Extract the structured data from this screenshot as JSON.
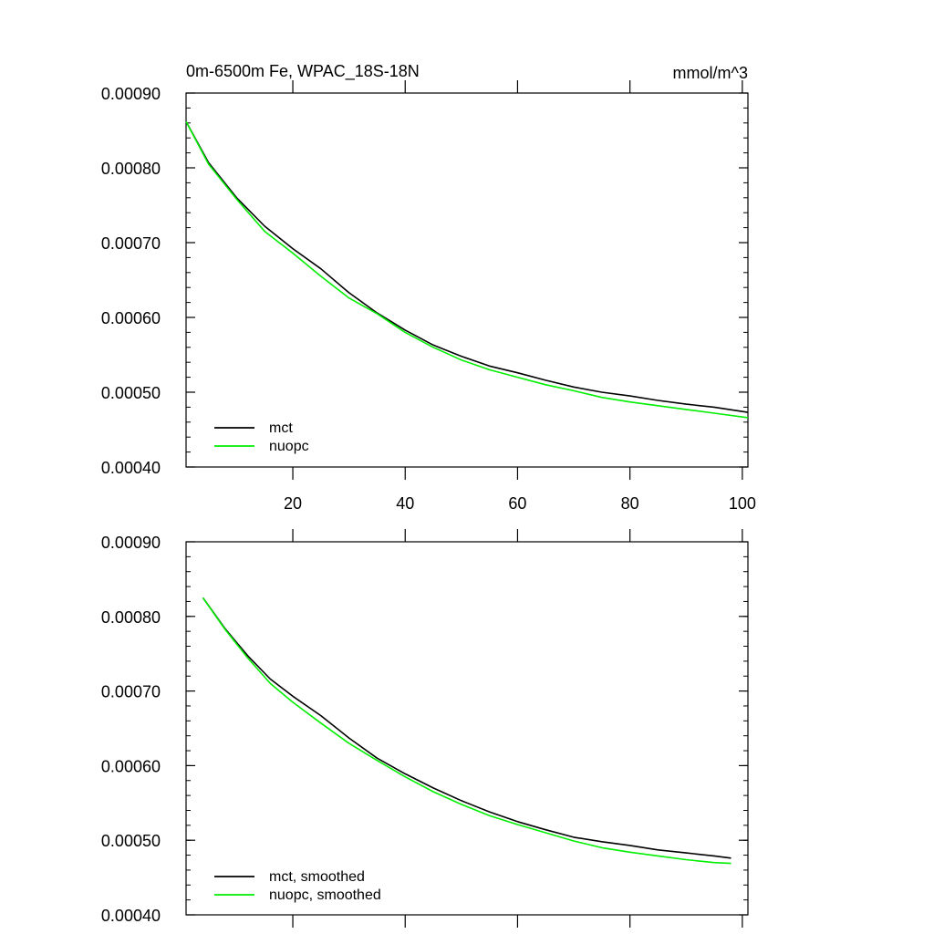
{
  "chart_data": [
    {
      "type": "line",
      "title_left": "0m-6500m Fe, WPAC_18S-18N",
      "title_right": "mmol/m^3",
      "xlim": [
        1,
        101
      ],
      "ylim": [
        0.0004,
        0.0009
      ],
      "yticks": [
        0.0004,
        0.0005,
        0.0006,
        0.0007,
        0.0008,
        0.0009
      ],
      "ytick_labels": [
        "0.00040",
        "0.00050",
        "0.00060",
        "0.00070",
        "0.00080",
        "0.00090"
      ],
      "xticks": [
        20,
        40,
        60,
        80,
        100
      ],
      "xtick_labels": [
        "20",
        "40",
        "60",
        "80",
        "100"
      ],
      "legend_position": "bottom-left",
      "series": [
        {
          "name": "mct",
          "color": "#000000",
          "x": [
            1,
            5,
            10,
            15,
            20,
            25,
            30,
            35,
            40,
            45,
            50,
            55,
            60,
            65,
            70,
            75,
            80,
            85,
            90,
            95,
            101
          ],
          "y": [
            0.000862,
            0.000807,
            0.00076,
            0.000722,
            0.000692,
            0.000665,
            0.000633,
            0.000606,
            0.000583,
            0.000563,
            0.000548,
            0.000535,
            0.000526,
            0.000516,
            0.000507,
            0.0005,
            0.000495,
            0.000489,
            0.000484,
            0.00048,
            0.000473
          ]
        },
        {
          "name": "nuopc",
          "color": "#00ee00",
          "x": [
            1,
            5,
            10,
            15,
            20,
            25,
            30,
            35,
            40,
            45,
            50,
            55,
            60,
            65,
            70,
            75,
            80,
            85,
            90,
            95,
            101
          ],
          "y": [
            0.000862,
            0.000805,
            0.000758,
            0.000715,
            0.000686,
            0.000655,
            0.000626,
            0.000605,
            0.00058,
            0.00056,
            0.000543,
            0.00053,
            0.00052,
            0.00051,
            0.000502,
            0.000493,
            0.000487,
            0.000482,
            0.000477,
            0.000472,
            0.000466
          ]
        }
      ]
    },
    {
      "type": "line",
      "xlim": [
        1,
        101
      ],
      "ylim": [
        0.0004,
        0.0009
      ],
      "yticks": [
        0.0004,
        0.0005,
        0.0006,
        0.0007,
        0.0008,
        0.0009
      ],
      "ytick_labels": [
        "0.00040",
        "0.00050",
        "0.00060",
        "0.00070",
        "0.00080",
        "0.00090"
      ],
      "xticks": [
        20,
        40,
        60,
        80,
        100
      ],
      "legend_position": "bottom-left",
      "series": [
        {
          "name": "mct, smoothed",
          "color": "#000000",
          "x": [
            4,
            8,
            12,
            16,
            20,
            25,
            30,
            35,
            40,
            45,
            50,
            55,
            60,
            65,
            70,
            75,
            80,
            85,
            90,
            95,
            98
          ],
          "y": [
            0.000825,
            0.000783,
            0.000747,
            0.000716,
            0.000693,
            0.000667,
            0.000637,
            0.00061,
            0.000589,
            0.00057,
            0.000553,
            0.000538,
            0.000525,
            0.000514,
            0.000504,
            0.000498,
            0.000493,
            0.000487,
            0.000483,
            0.000479,
            0.000476
          ]
        },
        {
          "name": "nuopc, smoothed",
          "color": "#00ee00",
          "x": [
            4,
            8,
            12,
            16,
            20,
            25,
            30,
            35,
            40,
            45,
            50,
            55,
            60,
            65,
            70,
            75,
            80,
            85,
            90,
            95,
            98
          ],
          "y": [
            0.000825,
            0.000782,
            0.000744,
            0.00071,
            0.000685,
            0.000657,
            0.00063,
            0.000607,
            0.000585,
            0.000565,
            0.000548,
            0.000533,
            0.000521,
            0.00051,
            0.000499,
            0.00049,
            0.000484,
            0.000479,
            0.000474,
            0.00047,
            0.000469
          ]
        }
      ]
    }
  ]
}
